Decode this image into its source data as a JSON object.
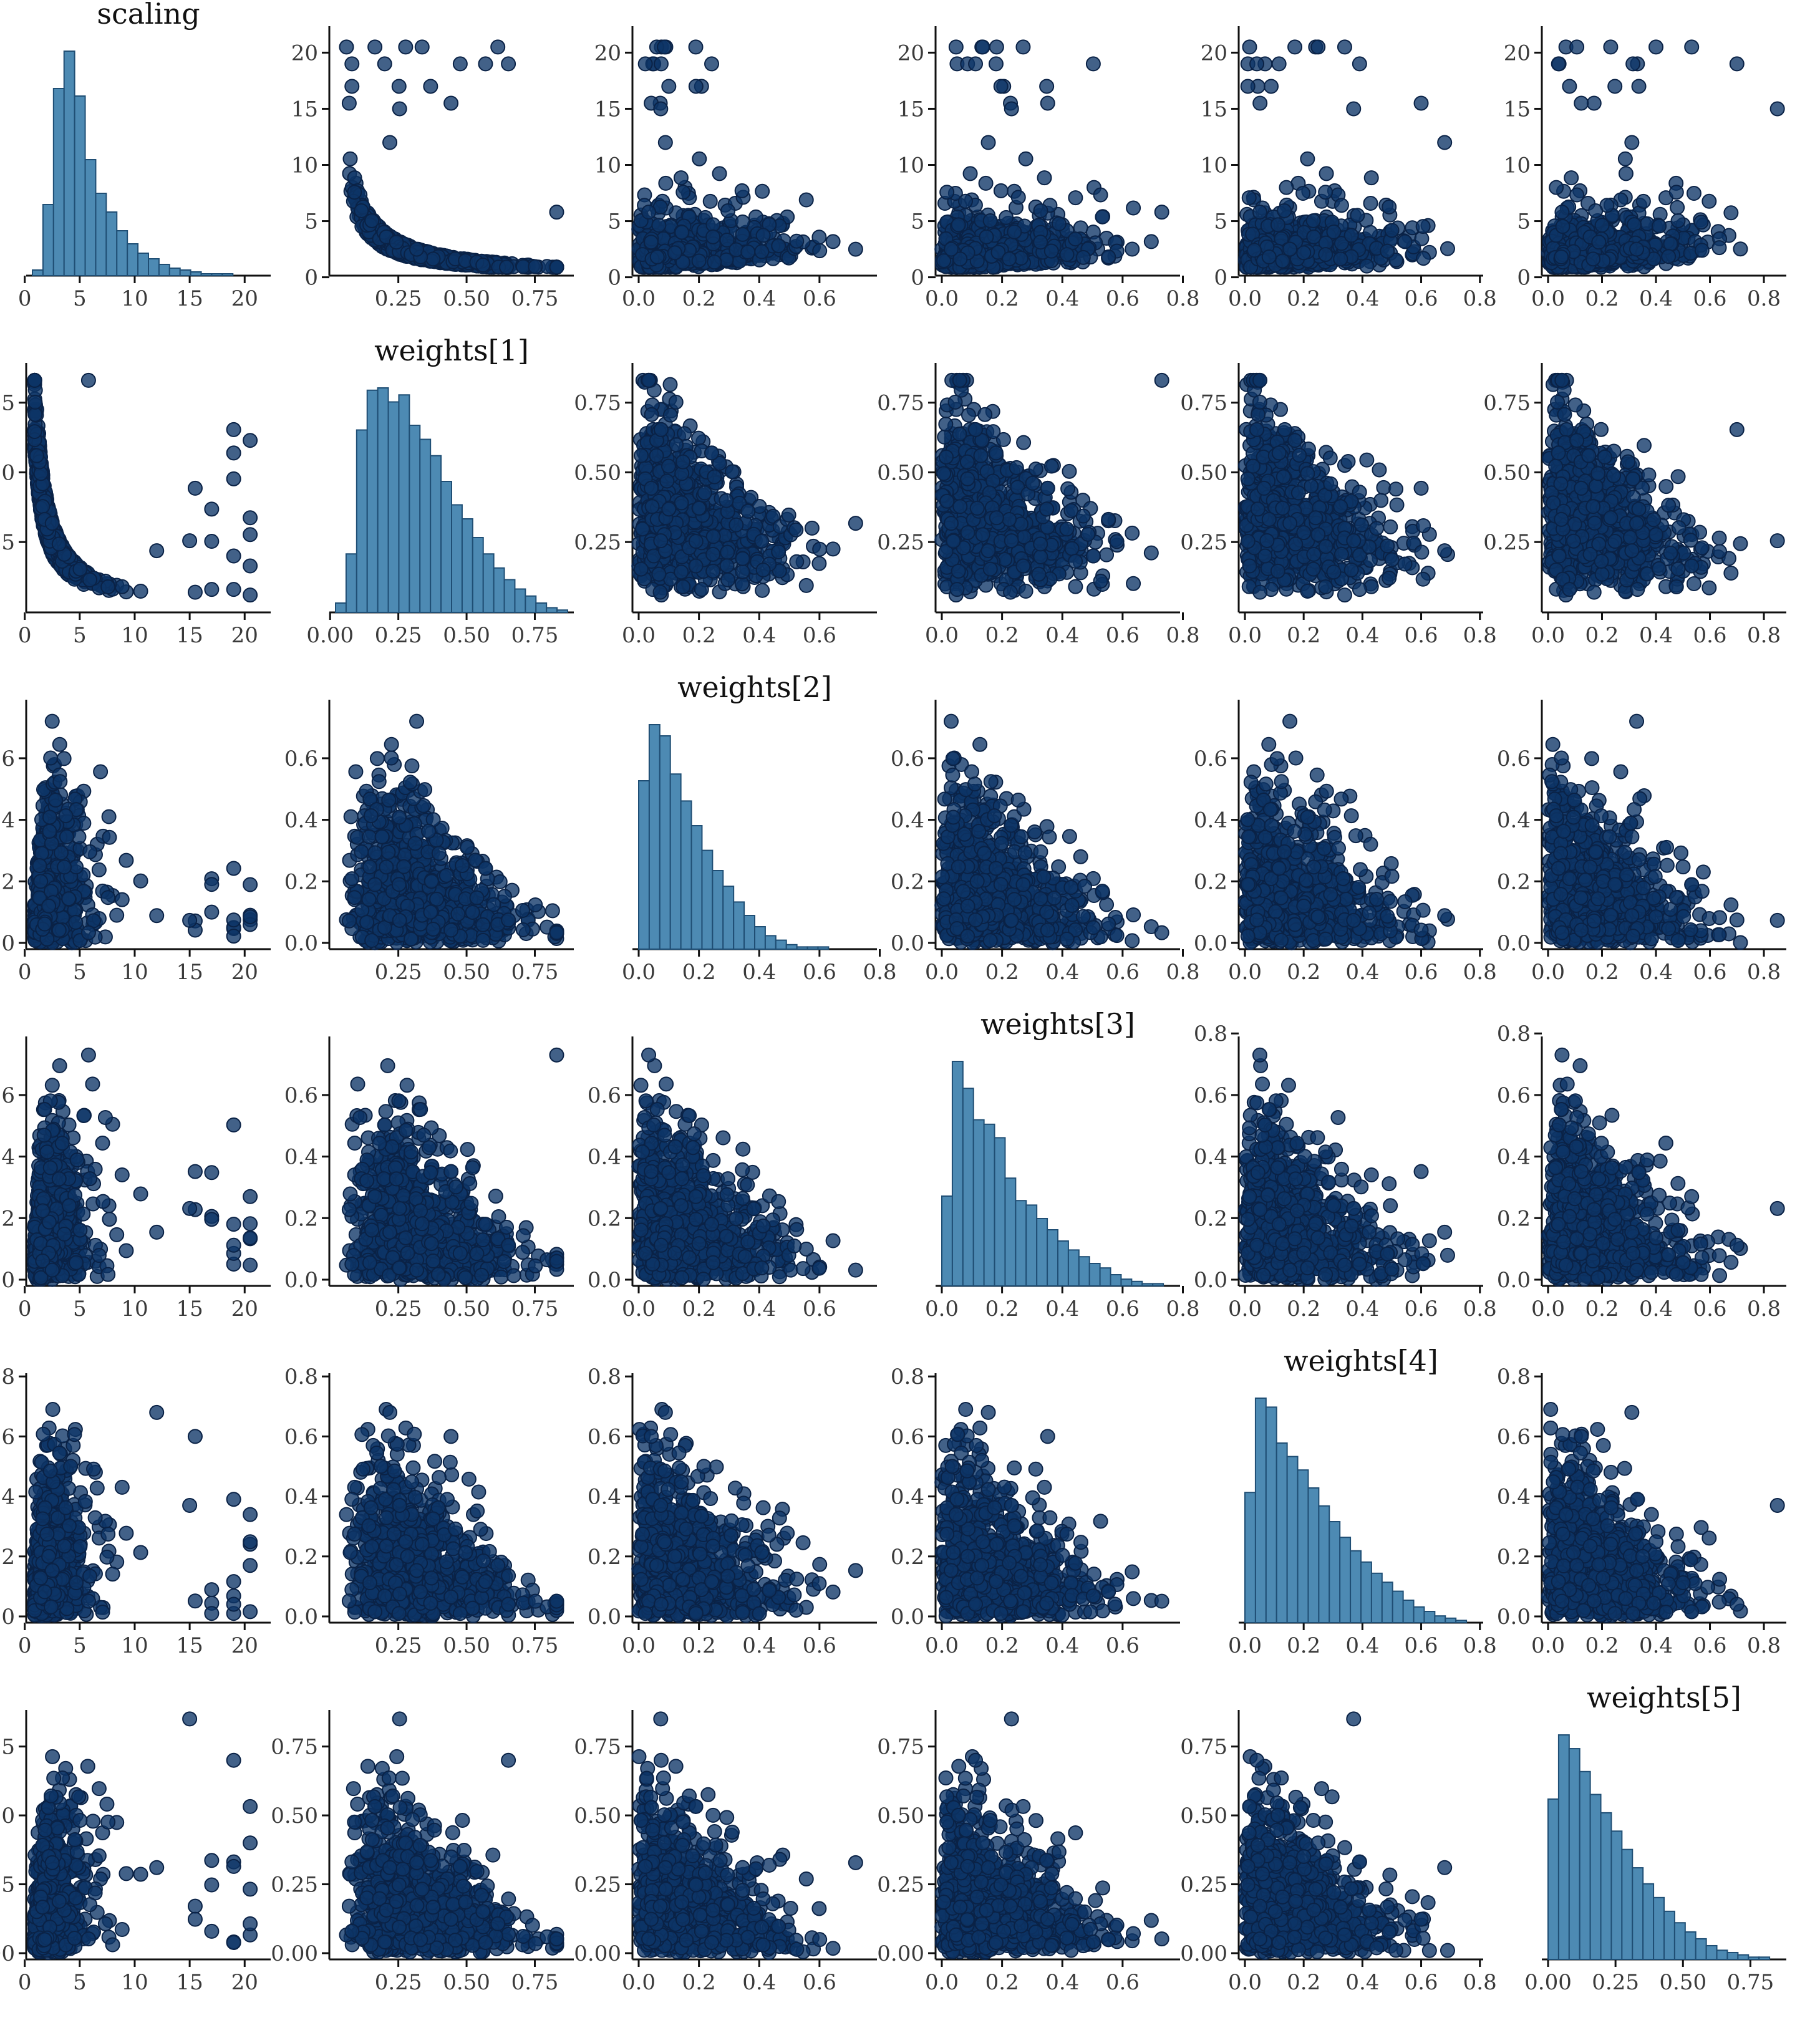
{
  "chart_data": {
    "type": "pairplot",
    "variables": [
      "scaling",
      "weights[1]",
      "weights[2]",
      "weights[3]",
      "weights[4]",
      "weights[5]"
    ],
    "titles": [
      "scaling",
      "weights[1]",
      "weights[2]",
      "weights[3]",
      "weights[4]",
      "weights[5]"
    ],
    "colors": {
      "scatter_fill": "#0d3566",
      "scatter_stroke": "#0a2246",
      "hist_fill": "#4d8ab3",
      "hist_stroke": "#1f4e74",
      "axis": "#111111",
      "tick_text": "#3a3a3a"
    },
    "grid": false,
    "legend": "none",
    "axes": {
      "x_ticks": [
        [
          "0",
          "5",
          "10",
          "15",
          "20"
        ],
        [
          "0.25",
          "0.50",
          "0.75"
        ],
        [
          "0.0",
          "0.2",
          "0.4",
          "0.6"
        ],
        [
          "0.0",
          "0.2",
          "0.4",
          "0.6",
          "0.8"
        ],
        [
          "0.0",
          "0.2",
          "0.4",
          "0.6",
          "0.8"
        ],
        [
          "0.0",
          "0.2",
          "0.4",
          "0.6",
          "0.8"
        ]
      ],
      "x_ticks_by_row": [
        [
          [
            "0",
            "5",
            "10",
            "15",
            "20"
          ],
          [
            "0.25",
            "0.50",
            "0.75"
          ],
          [
            "0.0",
            "0.2",
            "0.4",
            "0.6"
          ],
          [
            "0.0",
            "0.2",
            "0.4",
            "0.6",
            "0.8"
          ],
          [
            "0.0",
            "0.2",
            "0.4",
            "0.6",
            "0.8"
          ],
          [
            "0.0",
            "0.2",
            "0.4",
            "0.6",
            "0.8"
          ]
        ],
        [
          [
            "0",
            "5",
            "10",
            "15",
            "20"
          ],
          [
            "0.00",
            "0.25",
            "0.50",
            "0.75"
          ],
          [
            "0.0",
            "0.2",
            "0.4",
            "0.6"
          ],
          [
            "0.0",
            "0.2",
            "0.4",
            "0.6",
            "0.8"
          ],
          [
            "0.0",
            "0.2",
            "0.4",
            "0.6",
            "0.8"
          ],
          [
            "0.0",
            "0.2",
            "0.4",
            "0.6",
            "0.8"
          ]
        ],
        [
          [
            "0",
            "5",
            "10",
            "15",
            "20"
          ],
          [
            "0.25",
            "0.50",
            "0.75"
          ],
          [
            "0.0",
            "0.2",
            "0.4",
            "0.6",
            "0.8"
          ],
          [
            "0.0",
            "0.2",
            "0.4",
            "0.6",
            "0.8"
          ],
          [
            "0.0",
            "0.2",
            "0.4",
            "0.6",
            "0.8"
          ],
          [
            "0.0",
            "0.2",
            "0.4",
            "0.6",
            "0.8"
          ]
        ],
        [
          [
            "0",
            "5",
            "10",
            "15",
            "20"
          ],
          [
            "0.25",
            "0.50",
            "0.75"
          ],
          [
            "0.0",
            "0.2",
            "0.4",
            "0.6"
          ],
          [
            "0.0",
            "0.2",
            "0.4",
            "0.6",
            "0.8"
          ],
          [
            "0.0",
            "0.2",
            "0.4",
            "0.6",
            "0.8"
          ],
          [
            "0.0",
            "0.2",
            "0.4",
            "0.6",
            "0.8"
          ]
        ],
        [
          [
            "0",
            "5",
            "10",
            "15",
            "20"
          ],
          [
            "0.25",
            "0.50",
            "0.75"
          ],
          [
            "0.0",
            "0.2",
            "0.4",
            "0.6"
          ],
          [
            "0.0",
            "0.2",
            "0.4",
            "0.6"
          ],
          [
            "0.0",
            "0.2",
            "0.4",
            "0.6",
            "0.8"
          ],
          [
            "0.0",
            "0.2",
            "0.4",
            "0.6",
            "0.8"
          ]
        ],
        [
          [
            "0",
            "5",
            "10",
            "15",
            "20"
          ],
          [
            "0.25",
            "0.50",
            "0.75"
          ],
          [
            "0.0",
            "0.2",
            "0.4",
            "0.6"
          ],
          [
            "0.0",
            "0.2",
            "0.4",
            "0.6"
          ],
          [
            "0.0",
            "0.2",
            "0.4",
            "0.6",
            "0.8"
          ],
          [
            "0.00",
            "0.25",
            "0.50",
            "0.75"
          ]
        ]
      ],
      "y_ticks": [
        [
          "0",
          "5",
          "10",
          "15",
          "20"
        ],
        [
          "0.25",
          "0.50",
          "0.75"
        ],
        [
          "0.0",
          "0.2",
          "0.4",
          "0.6"
        ],
        [
          "0.0",
          "0.2",
          "0.4",
          "0.6"
        ],
        [
          "0.0",
          "0.2",
          "0.4",
          "0.6",
          "0.8"
        ],
        [
          "0.00",
          "0.25",
          "0.50",
          "0.75"
        ]
      ],
      "y_ticks_overrides": [
        {
          "row": 3,
          "col": 4,
          "ticks": [
            "0.0",
            "0.2",
            "0.4",
            "0.6",
            "0.8"
          ]
        },
        {
          "row": 3,
          "col": 5,
          "ticks": [
            "0.0",
            "0.2",
            "0.4",
            "0.6",
            "0.8"
          ]
        }
      ],
      "ranges": [
        {
          "min": 0.7,
          "max": 21.8
        },
        {
          "min": 0.02,
          "max": 0.87
        },
        {
          "min": 0.0,
          "max": 0.77
        },
        {
          "min": 0.0,
          "max": 0.77
        },
        {
          "min": 0.0,
          "max": 0.79
        },
        {
          "min": 0.0,
          "max": 0.86
        }
      ]
    },
    "histograms": [
      {
        "variable": "scaling",
        "bin_edges_range": [
          0.7,
          21.8
        ],
        "counts": [
          3,
          38,
          100,
          120,
          96,
          62,
          44,
          34,
          24,
          17,
          12,
          9,
          6,
          4,
          3,
          2,
          1,
          1,
          1,
          0,
          0,
          0
        ]
      },
      {
        "variable": "weights[1]",
        "bin_edges_range": [
          0.02,
          0.87
        ],
        "counts": [
          4,
          25,
          78,
          95,
          96,
          90,
          93,
          80,
          74,
          67,
          56,
          46,
          40,
          32,
          25,
          19,
          14,
          10,
          7,
          4,
          2,
          1
        ]
      },
      {
        "variable": "weights[2]",
        "bin_edges_range": [
          0.0,
          0.77
        ],
        "counts": [
          75,
          100,
          95,
          78,
          66,
          55,
          44,
          35,
          28,
          21,
          15,
          10,
          6,
          4,
          2,
          1,
          1,
          1,
          0,
          0,
          0,
          0
        ]
      },
      {
        "variable": "weights[3]",
        "bin_edges_range": [
          0.0,
          0.77
        ],
        "counts": [
          40,
          100,
          88,
          74,
          72,
          66,
          48,
          38,
          36,
          30,
          25,
          20,
          16,
          13,
          10,
          8,
          5,
          3,
          2,
          1,
          1,
          0
        ]
      },
      {
        "variable": "weights[4]",
        "bin_edges_range": [
          0.0,
          0.79
        ],
        "counts": [
          58,
          100,
          96,
          80,
          74,
          68,
          60,
          52,
          45,
          38,
          32,
          27,
          22,
          18,
          14,
          10,
          7,
          5,
          3,
          2,
          1,
          0
        ]
      },
      {
        "variable": "weights[5]",
        "bin_edges_range": [
          0.0,
          0.86
        ],
        "counts": [
          70,
          98,
          92,
          82,
          72,
          64,
          56,
          48,
          40,
          33,
          27,
          21,
          16,
          12,
          9,
          6,
          4,
          3,
          2,
          1,
          1,
          0
        ]
      }
    ],
    "scatter_shapes": [
      {
        "pair": [
          "scaling",
          "weights[1]"
        ],
        "relationship": "inverse",
        "outliers": [
          [
            20.5,
            0.06
          ],
          [
            19.0,
            0.08
          ],
          [
            17.0,
            0.08
          ],
          [
            15.5,
            0.07
          ]
        ]
      },
      {
        "pair": [
          "scaling",
          "weights[2]"
        ],
        "relationship": "triangle-decreasing",
        "outliers": [
          [
            20.5,
            0.09
          ],
          [
            19.0,
            0.05
          ],
          [
            17.0,
            0.1
          ],
          [
            2.5,
            0.72
          ]
        ]
      },
      {
        "pair": [
          "scaling",
          "weights[3]"
        ],
        "relationship": "triangle-decreasing",
        "outliers": [
          [
            20.5,
            0.27
          ],
          [
            19.0,
            0.18
          ],
          [
            5.8,
            0.73
          ]
        ]
      },
      {
        "pair": [
          "scaling",
          "weights[4]"
        ],
        "relationship": "spread",
        "outliers": [
          [
            20.5,
            0.17
          ],
          [
            19.0,
            0.01
          ],
          [
            17.0,
            0.01
          ],
          [
            15.5,
            0.6
          ],
          [
            12.0,
            0.68
          ]
        ]
      },
      {
        "pair": [
          "scaling",
          "weights[5]"
        ],
        "relationship": "spread",
        "outliers": [
          [
            20.5,
            0.4
          ],
          [
            19.0,
            0.7
          ],
          [
            15.0,
            0.85
          ]
        ]
      },
      {
        "pair": [
          "weights[1]",
          "weights[2]"
        ],
        "relationship": "simplex",
        "outliers": []
      },
      {
        "pair": [
          "weights[1]",
          "weights[3]"
        ],
        "relationship": "simplex",
        "outliers": []
      },
      {
        "pair": [
          "weights[1]",
          "weights[4]"
        ],
        "relationship": "simplex",
        "outliers": []
      },
      {
        "pair": [
          "weights[1]",
          "weights[5]"
        ],
        "relationship": "simplex",
        "outliers": []
      },
      {
        "pair": [
          "weights[2]",
          "weights[3]"
        ],
        "relationship": "simplex",
        "outliers": []
      },
      {
        "pair": [
          "weights[2]",
          "weights[4]"
        ],
        "relationship": "simplex",
        "outliers": []
      },
      {
        "pair": [
          "weights[2]",
          "weights[5]"
        ],
        "relationship": "simplex",
        "outliers": []
      },
      {
        "pair": [
          "weights[3]",
          "weights[4]"
        ],
        "relationship": "simplex",
        "outliers": []
      },
      {
        "pair": [
          "weights[3]",
          "weights[5]"
        ],
        "relationship": "simplex",
        "outliers": []
      },
      {
        "pair": [
          "weights[4]",
          "weights[5]"
        ],
        "relationship": "simplex",
        "outliers": []
      }
    ]
  }
}
